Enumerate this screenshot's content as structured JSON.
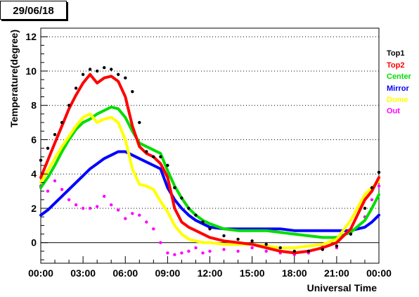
{
  "header": {
    "date_label": "29/06/18"
  },
  "colors": {
    "Top1": "#000000",
    "Top2": "#ff0000",
    "Center": "#00dd00",
    "Mirror": "#0000ff",
    "Dome": "#ffff00",
    "Out": "#ff00ff"
  },
  "chart_data": {
    "type": "line",
    "title": "",
    "xlabel": "Universal Time",
    "ylabel": "Temperature(degree)",
    "xlim": [
      0,
      24
    ],
    "ylim": [
      -1.2,
      12.5
    ],
    "x_ticks": [
      0,
      3,
      6,
      9,
      12,
      15,
      18,
      21,
      24
    ],
    "x_tick_labels": [
      "00:00",
      "03:00",
      "06:00",
      "09:00",
      "12:00",
      "15:00",
      "18:00",
      "21:00",
      "00:00"
    ],
    "y_ticks": [
      0,
      2,
      4,
      6,
      8,
      10,
      12
    ],
    "y_tick_labels": [
      "0",
      "2",
      "4",
      "6",
      "8",
      "10",
      "12"
    ],
    "grid": "horizontal dotted",
    "legend_position": "right",
    "series": [
      {
        "name": "Top1",
        "style": "points",
        "x": [
          0,
          0.5,
          1,
          1.5,
          2,
          2.5,
          3,
          3.5,
          4,
          4.5,
          5,
          5.5,
          6,
          6.5,
          7,
          7.5,
          8,
          8.5,
          9,
          9.5,
          10,
          10.5,
          11,
          11.5,
          12,
          13,
          14,
          15,
          16,
          17,
          18,
          19,
          20,
          21,
          22,
          23,
          23.5,
          24
        ],
        "y": [
          4.8,
          5.5,
          6.3,
          7.0,
          8.0,
          9.0,
          9.8,
          10.1,
          10.0,
          10.2,
          10.1,
          9.8,
          9.6,
          8.8,
          7.0,
          5.3,
          5.0,
          5.0,
          4.5,
          3.2,
          2.6,
          2.0,
          1.6,
          1.2,
          0.8,
          0.4,
          0.2,
          0.1,
          -0.1,
          -0.3,
          -0.5,
          -0.5,
          -0.4,
          -0.2,
          0.5,
          2.0,
          3.2,
          4.1
        ]
      },
      {
        "name": "Top2",
        "style": "line",
        "x": [
          0,
          0.5,
          1,
          1.5,
          2,
          2.5,
          3,
          3.5,
          4,
          4.5,
          5,
          5.5,
          6,
          6.5,
          7,
          7.5,
          8,
          8.5,
          9,
          9.5,
          10,
          10.5,
          11,
          11.5,
          12,
          13,
          14,
          15,
          16,
          17,
          18,
          19,
          20,
          21,
          22,
          23,
          23.5,
          24
        ],
        "y": [
          3.8,
          4.8,
          5.8,
          6.8,
          7.8,
          8.6,
          9.3,
          9.8,
          9.3,
          9.6,
          9.7,
          9.4,
          8.5,
          6.8,
          5.6,
          5.2,
          5.0,
          4.6,
          3.8,
          2.0,
          1.2,
          0.9,
          0.7,
          0.5,
          0.3,
          0.1,
          0.0,
          -0.1,
          -0.3,
          -0.5,
          -0.6,
          -0.5,
          -0.3,
          0.0,
          0.8,
          2.5,
          3.0,
          3.8
        ]
      },
      {
        "name": "Center",
        "style": "line",
        "x": [
          0,
          0.5,
          1,
          1.5,
          2,
          2.5,
          3,
          3.5,
          4,
          4.5,
          5,
          5.5,
          6,
          6.5,
          7,
          7.5,
          8,
          8.5,
          9,
          9.5,
          10,
          10.5,
          11,
          11.5,
          12,
          13,
          14,
          15,
          16,
          17,
          18,
          19,
          20,
          21,
          22,
          23,
          23.5,
          24
        ],
        "y": [
          3.2,
          3.8,
          4.5,
          5.3,
          6.0,
          6.6,
          7.0,
          7.2,
          7.5,
          7.7,
          7.9,
          7.8,
          7.3,
          6.5,
          5.8,
          5.6,
          5.4,
          5.2,
          4.2,
          3.3,
          2.6,
          2.0,
          1.6,
          1.3,
          1.1,
          0.8,
          0.7,
          0.7,
          0.7,
          0.6,
          0.5,
          0.4,
          0.3,
          0.3,
          0.6,
          1.3,
          2.0,
          2.8
        ]
      },
      {
        "name": "Mirror",
        "style": "line",
        "x": [
          0,
          0.5,
          1,
          1.5,
          2,
          2.5,
          3,
          3.5,
          4,
          4.5,
          5,
          5.5,
          6,
          6.5,
          7,
          7.5,
          8,
          8.5,
          9,
          9.5,
          10,
          10.5,
          11,
          11.5,
          12,
          13,
          14,
          15,
          16,
          17,
          18,
          19,
          20,
          21,
          22,
          23,
          23.5,
          24
        ],
        "y": [
          1.6,
          1.9,
          2.3,
          2.7,
          3.1,
          3.5,
          3.9,
          4.3,
          4.6,
          4.9,
          5.1,
          5.3,
          5.3,
          5.1,
          4.9,
          4.7,
          4.5,
          4.3,
          3.2,
          2.5,
          2.0,
          1.6,
          1.3,
          1.1,
          0.9,
          0.8,
          0.8,
          0.8,
          0.8,
          0.8,
          0.7,
          0.7,
          0.7,
          0.7,
          0.7,
          0.9,
          1.2,
          1.6
        ]
      },
      {
        "name": "Dome",
        "style": "line",
        "x": [
          0,
          0.5,
          1,
          1.5,
          2,
          2.5,
          3,
          3.5,
          4,
          4.5,
          5,
          5.5,
          6,
          6.5,
          7,
          7.5,
          8,
          8.5,
          9,
          9.5,
          10,
          10.5,
          11,
          11.5,
          12,
          13,
          14,
          15,
          16,
          17,
          18,
          19,
          20,
          21,
          22,
          23,
          23.5,
          24
        ],
        "y": [
          3.5,
          4.2,
          4.9,
          5.6,
          6.2,
          6.8,
          7.3,
          7.5,
          7.0,
          7.2,
          7.3,
          7.0,
          6.0,
          4.3,
          3.4,
          3.3,
          3.1,
          2.4,
          1.8,
          1.0,
          0.5,
          0.2,
          0.1,
          0.0,
          0.0,
          -0.1,
          -0.1,
          -0.1,
          -0.2,
          -0.3,
          -0.3,
          -0.2,
          -0.1,
          0.2,
          1.3,
          2.8,
          3.2,
          3.6
        ]
      },
      {
        "name": "Out",
        "style": "points",
        "x": [
          0,
          0.5,
          1,
          1.5,
          2,
          2.5,
          3,
          3.5,
          4,
          4.5,
          5,
          5.5,
          6,
          6.5,
          7,
          7.5,
          8,
          8.5,
          9,
          9.5,
          10,
          10.5,
          11,
          11.5,
          12,
          13,
          14,
          15,
          16,
          17,
          18,
          19,
          20,
          21,
          22,
          23,
          23.5,
          24
        ],
        "y": [
          3.3,
          3.0,
          3.6,
          3.1,
          2.5,
          2.2,
          2.0,
          2.0,
          2.1,
          2.7,
          2.2,
          1.9,
          1.4,
          1.7,
          1.6,
          1.2,
          0.8,
          0.0,
          -0.6,
          -0.7,
          -0.6,
          -0.5,
          -0.3,
          -0.6,
          -0.5,
          -0.4,
          -0.5,
          -0.3,
          -0.5,
          -0.6,
          -0.7,
          -0.6,
          -0.2,
          -0.3,
          0.5,
          1.5,
          2.5,
          3.3
        ]
      }
    ]
  }
}
